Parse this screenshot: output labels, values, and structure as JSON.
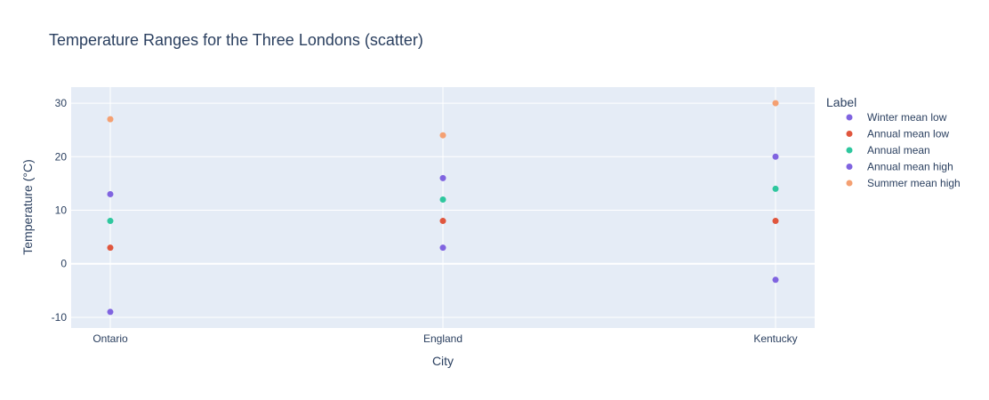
{
  "chart_data": {
    "type": "scatter",
    "title": "Temperature Ranges for the Three Londons (scatter)",
    "xlabel": "City",
    "ylabel": "Temperature (°C)",
    "categories": [
      "Ontario",
      "England",
      "Kentucky"
    ],
    "yticks": [
      -10,
      0,
      10,
      20,
      30
    ],
    "ylim": [
      -12,
      33
    ],
    "grid": true,
    "legend": {
      "title": "Label",
      "position": "right"
    },
    "series": [
      {
        "name": "Winter mean low",
        "color": "#8064e0",
        "values": [
          -9,
          3,
          -3
        ]
      },
      {
        "name": "Annual mean low",
        "color": "#e0563d",
        "values": [
          3,
          8,
          8
        ]
      },
      {
        "name": "Annual mean",
        "color": "#2ec79e",
        "values": [
          8,
          12,
          14
        ]
      },
      {
        "name": "Annual mean high",
        "color": "#8064e0",
        "values": [
          13,
          16,
          20
        ]
      },
      {
        "name": "Summer mean high",
        "color": "#f4a072",
        "values": [
          27,
          24,
          30
        ]
      }
    ]
  }
}
